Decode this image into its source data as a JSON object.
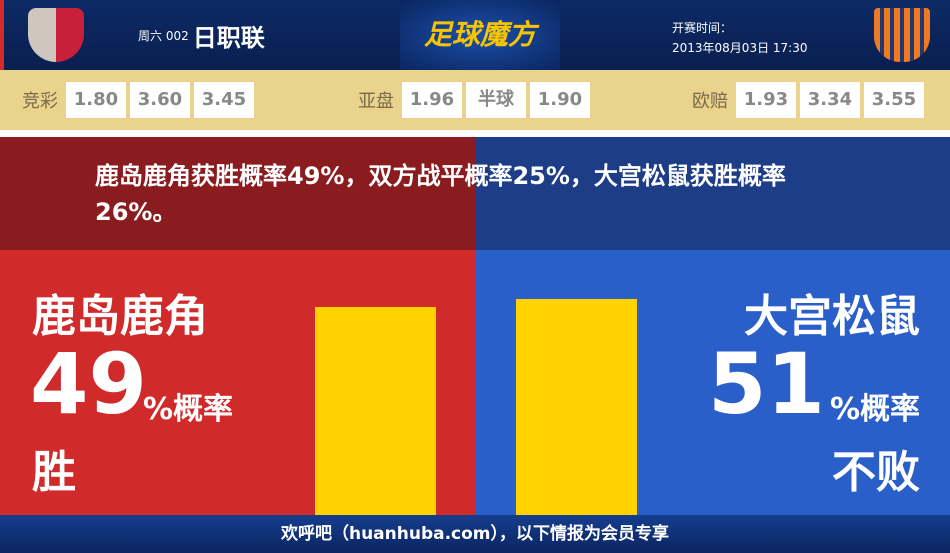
{
  "header": {
    "weekday": "周六 002",
    "league": "日职联",
    "brand": "足球魔方",
    "kickoff_label": "开赛时间：",
    "kickoff_time": "2013年08月03日 17:30"
  },
  "odds": {
    "jingcai": {
      "label": "竞彩",
      "values": [
        "1.80",
        "3.60",
        "3.45"
      ]
    },
    "asian": {
      "label": "亚盘",
      "values": [
        "1.96",
        "半球",
        "1.90"
      ]
    },
    "euro": {
      "label": "欧赔",
      "values": [
        "1.93",
        "3.34",
        "3.55"
      ]
    }
  },
  "summary": "鹿岛鹿角获胜概率49%，双方战平概率25%，大宫松鼠获胜概率26%。",
  "home": {
    "name": "鹿岛鹿角",
    "percent": "49",
    "unit": "%概率",
    "result": "胜",
    "bar_value": 49
  },
  "away": {
    "name": "大宫松鼠",
    "percent": "51",
    "unit": "%概率",
    "result": "不败",
    "bar_value": 51
  },
  "colors": {
    "home": "#d02a2a",
    "away": "#2a5fc9",
    "bar": "#ffd200"
  },
  "footer": "欢呼吧（huanhuba.com），以下情报为会员专享"
}
